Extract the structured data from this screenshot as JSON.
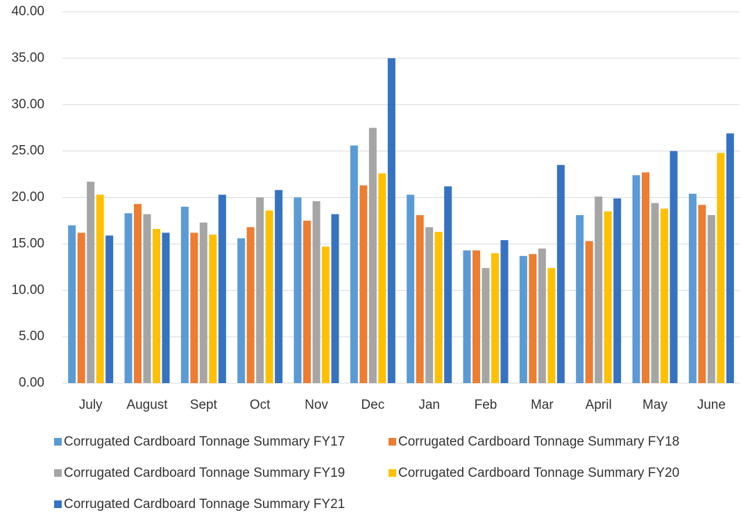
{
  "chart_data": {
    "type": "bar",
    "categories": [
      "July",
      "August",
      "Sept",
      "Oct",
      "Nov",
      "Dec",
      "Jan",
      "Feb",
      "Mar",
      "April",
      "May",
      "June"
    ],
    "series": [
      {
        "name": "Corrugated Cardboard Tonnage Summary FY17",
        "color": "#5b9bd5",
        "values": [
          17.0,
          18.3,
          19.0,
          15.6,
          20.0,
          25.6,
          20.3,
          14.3,
          13.7,
          18.1,
          22.4,
          20.4
        ]
      },
      {
        "name": "Corrugated Cardboard Tonnage Summary FY18",
        "color": "#ed7d31",
        "values": [
          16.2,
          19.3,
          16.2,
          16.8,
          17.5,
          21.3,
          18.1,
          14.3,
          13.9,
          15.3,
          22.7,
          19.2
        ]
      },
      {
        "name": "Corrugated Cardboard Tonnage Summary FY19",
        "color": "#a5a5a5",
        "values": [
          21.7,
          18.2,
          17.3,
          20.0,
          19.6,
          27.5,
          16.8,
          12.4,
          14.5,
          20.1,
          19.4,
          18.1
        ]
      },
      {
        "name": "Corrugated Cardboard Tonnage Summary FY20",
        "color": "#ffc000",
        "values": [
          20.3,
          16.6,
          16.0,
          18.6,
          14.7,
          22.6,
          16.3,
          14.0,
          12.4,
          18.5,
          18.8,
          24.8
        ]
      },
      {
        "name": "Corrugated Cardboard Tonnage Summary FY21",
        "color": "#3672c2",
        "values": [
          15.9,
          16.2,
          20.3,
          20.8,
          18.2,
          35.0,
          21.2,
          15.4,
          23.5,
          19.9,
          25.0,
          26.9
        ]
      }
    ],
    "ylim": [
      0,
      40
    ],
    "yticks": [
      {
        "value": 0,
        "label": "0.00"
      },
      {
        "value": 5,
        "label": "5.00"
      },
      {
        "value": 10,
        "label": "10.00"
      },
      {
        "value": 15,
        "label": "15.00"
      },
      {
        "value": 20,
        "label": "20.00"
      },
      {
        "value": 25,
        "label": "25.00"
      },
      {
        "value": 30,
        "label": "30.00"
      },
      {
        "value": 35,
        "label": "35.00"
      },
      {
        "value": 40,
        "label": "40.00"
      }
    ],
    "grid": true,
    "legend": "bottom"
  }
}
